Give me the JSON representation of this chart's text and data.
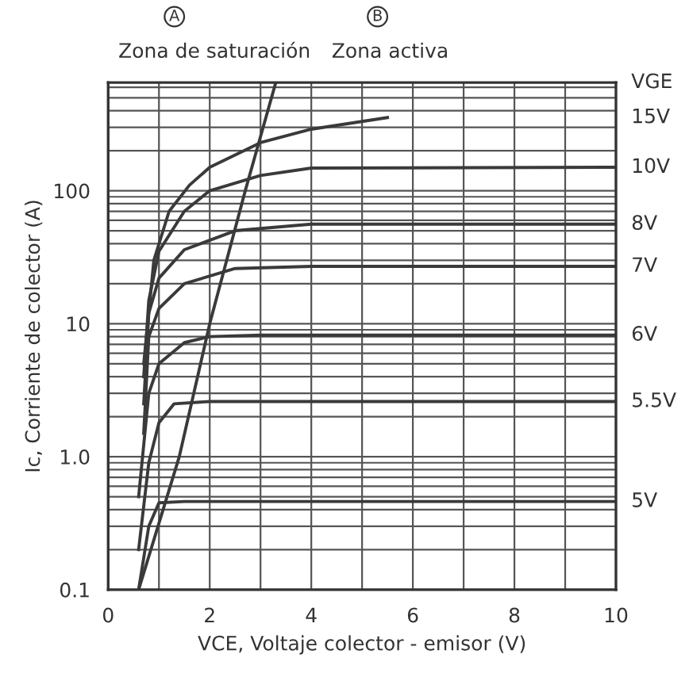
{
  "chart_data": {
    "type": "line",
    "xlabel": "VCE, Voltaje colector - emisor (V)",
    "ylabel": "Ic, Corriente de colector (A)",
    "legend_title": "VGE",
    "annotations": [
      "A",
      "Zona de saturación",
      "B",
      "Zona activa"
    ],
    "log": "y",
    "grid": true,
    "legend": false,
    "marker": "none",
    "line_style": "solid",
    "xlim": [
      0,
      10
    ],
    "xticks": [
      0,
      {
        "value": 1,
        "label": null
      },
      2,
      {
        "value": 3,
        "label": null
      },
      4,
      {
        "value": 5,
        "label": null
      },
      6,
      {
        "value": 7,
        "label": null
      },
      {
        "value": 8,
        "label": "8"
      },
      {
        "value": 9,
        "label": null
      },
      10
    ],
    "ylim": [
      0.1,
      650
    ],
    "yticks": [
      0.1,
      {
        "value": 0.2,
        "label": null
      },
      {
        "value": 0.3,
        "label": null
      },
      {
        "value": 0.4,
        "label": null
      },
      {
        "value": 0.5,
        "label": null
      },
      {
        "value": 0.6,
        "label": null
      },
      {
        "value": 0.7,
        "label": null
      },
      {
        "value": 0.8,
        "label": null
      },
      {
        "value": 0.9,
        "label": null
      },
      {
        "value": 1,
        "label": "1.0"
      },
      {
        "value": 2,
        "label": null
      },
      {
        "value": 3,
        "label": null
      },
      {
        "value": 4,
        "label": null
      },
      {
        "value": 5,
        "label": null
      },
      {
        "value": 6,
        "label": null
      },
      {
        "value": 7,
        "label": null
      },
      {
        "value": 8,
        "label": null
      },
      {
        "value": 9,
        "label": null
      },
      10,
      {
        "value": 20,
        "label": null
      },
      {
        "value": 30,
        "label": null
      },
      {
        "value": 40,
        "label": null
      },
      {
        "value": 50,
        "label": null
      },
      {
        "value": 60,
        "label": null
      },
      {
        "value": 70,
        "label": null
      },
      {
        "value": 80,
        "label": null
      },
      {
        "value": 90,
        "label": null
      },
      100,
      {
        "value": 200,
        "label": null
      },
      {
        "value": 300,
        "label": null
      },
      {
        "value": 400,
        "label": null
      },
      {
        "value": 500,
        "label": null
      },
      {
        "value": 600,
        "label": null
      }
    ],
    "series": [
      {
        "name": "15V",
        "color": "#3a3a3a",
        "x": [
          0.7,
          0.9,
          1.2,
          1.6,
          2,
          3,
          4,
          5.5
        ],
        "values": [
          5,
          30,
          70,
          110,
          150,
          230,
          290,
          355
        ]
      },
      {
        "name": "10V",
        "color": "#3a3a3a",
        "x": [
          0.7,
          0.8,
          1.0,
          1.5,
          2,
          3,
          4,
          10
        ],
        "values": [
          4,
          15,
          35,
          70,
          100,
          130,
          148,
          150
        ]
      },
      {
        "name": "8V",
        "color": "#3a3a3a",
        "x": [
          0.7,
          0.8,
          1.0,
          1.5,
          2.5,
          4,
          10
        ],
        "values": [
          2.5,
          12,
          22,
          36,
          50,
          56,
          56
        ]
      },
      {
        "name": "7V",
        "color": "#3a3a3a",
        "x": [
          0.7,
          0.8,
          1.0,
          1.5,
          2.5,
          4,
          10
        ],
        "values": [
          1.5,
          8,
          13,
          20,
          26,
          27,
          27
        ]
      },
      {
        "name": "6V",
        "color": "#3a3a3a",
        "x": [
          0.6,
          0.8,
          1.0,
          1.5,
          2,
          3,
          10
        ],
        "values": [
          0.5,
          3,
          5,
          7.2,
          8,
          8.2,
          8.2
        ]
      },
      {
        "name": "5.5V",
        "color": "#3a3a3a",
        "x": [
          0.6,
          0.8,
          1.0,
          1.3,
          2,
          10
        ],
        "values": [
          0.2,
          0.9,
          1.8,
          2.5,
          2.6,
          2.6
        ]
      },
      {
        "name": "5V",
        "color": "#3a3a3a",
        "x": [
          0.6,
          0.8,
          1.0,
          1.5,
          10
        ],
        "values": [
          0.1,
          0.3,
          0.45,
          0.46,
          0.46
        ]
      },
      {
        "color": "#3a3a3a",
        "x": [
          0.6,
          1.4,
          2.0,
          2.7,
          3.3
        ],
        "values": [
          0.1,
          1,
          10,
          100,
          650
        ]
      }
    ]
  }
}
